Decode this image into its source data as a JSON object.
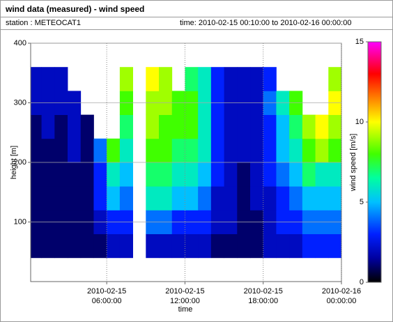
{
  "chart_data": {
    "type": "heatmap",
    "title": "wind data (measured) - wind speed",
    "station": "station : METEOCAT1",
    "period": "time: 2010-02-15 00:10:00 to 2010-02-16 00:00:00",
    "xlabel": "time",
    "ylabel": "height [m]",
    "zlabel": "wind speed [m/s]",
    "xlim": [
      "2010-02-15 00:10:00",
      "2010-02-16 00:00:00"
    ],
    "xticks": [
      "2010-02-15 06:00:00",
      "2010-02-15 12:00:00",
      "2010-02-15 18:00:00",
      "2010-02-16 00:00:00"
    ],
    "ylim": [
      0,
      400
    ],
    "yticks": [
      100,
      200,
      300,
      400
    ],
    "zlim": [
      0,
      15
    ],
    "zticks": [
      0,
      5,
      10,
      15
    ],
    "colorscale": [
      [
        0,
        "#000000"
      ],
      [
        1.5,
        "#0000a0"
      ],
      [
        3,
        "#0020ff"
      ],
      [
        5,
        "#00c0ff"
      ],
      [
        6.5,
        "#00ffa0"
      ],
      [
        8,
        "#40ff00"
      ],
      [
        10,
        "#ffff00"
      ],
      [
        11.5,
        "#ff8000"
      ],
      [
        13,
        "#ff0000"
      ],
      [
        15,
        "#ff00ff"
      ]
    ],
    "grid": true,
    "x_bins": [
      "2010-02-15 00:10:00",
      "2010-02-15 01:00:00",
      "2010-02-15 02:00:00",
      "2010-02-15 03:00:00",
      "2010-02-15 04:00:00",
      "2010-02-15 05:00:00",
      "2010-02-15 06:00:00",
      "2010-02-15 07:00:00",
      "2010-02-15 08:00:00",
      "2010-02-15 09:00:00",
      "2010-02-15 10:00:00",
      "2010-02-15 11:00:00",
      "2010-02-15 12:00:00",
      "2010-02-15 13:00:00",
      "2010-02-15 14:00:00",
      "2010-02-15 15:00:00",
      "2010-02-15 16:00:00",
      "2010-02-15 17:00:00",
      "2010-02-15 18:00:00",
      "2010-02-15 19:00:00",
      "2010-02-15 20:00:00",
      "2010-02-15 21:00:00",
      "2010-02-15 22:00:00",
      "2010-02-15 23:00:00",
      "2010-02-16 00:00:00"
    ],
    "y_bins": [
      40,
      80,
      120,
      160,
      200,
      240,
      280,
      320,
      360
    ],
    "values": [
      [
        1,
        1,
        1,
        1,
        1,
        1,
        2,
        2,
        null,
        2,
        2,
        2,
        2,
        2,
        1,
        1,
        1,
        1,
        2,
        2,
        2,
        3,
        3,
        3
      ],
      [
        1,
        1,
        1,
        1,
        1,
        2,
        3,
        3,
        null,
        4,
        4,
        3,
        3,
        3,
        2,
        2,
        1,
        1,
        2,
        3,
        3,
        4,
        4,
        4
      ],
      [
        1,
        1,
        1,
        1,
        1,
        3,
        5,
        4,
        null,
        6,
        6,
        5,
        5,
        4,
        2,
        2,
        1,
        2,
        2,
        3,
        4,
        5,
        5,
        5
      ],
      [
        1,
        1,
        1,
        1,
        1,
        3,
        6,
        5,
        null,
        7,
        7,
        6,
        6,
        5,
        3,
        2,
        1,
        2,
        3,
        4,
        5,
        7,
        6,
        6
      ],
      [
        1,
        1,
        1,
        2,
        1,
        4,
        8,
        6,
        null,
        8,
        8,
        7,
        7,
        6,
        3,
        2,
        2,
        2,
        3,
        5,
        6,
        8,
        9,
        8
      ],
      [
        1,
        2,
        1,
        2,
        1,
        null,
        null,
        7,
        null,
        9,
        8,
        8,
        8,
        6,
        3,
        2,
        2,
        2,
        3,
        5,
        7,
        9,
        10,
        9
      ],
      [
        2,
        2,
        2,
        2,
        null,
        null,
        null,
        8,
        null,
        9,
        9,
        8,
        8,
        6,
        3,
        2,
        2,
        2,
        4,
        6,
        8,
        null,
        null,
        10
      ],
      [
        2,
        2,
        2,
        null,
        null,
        null,
        null,
        9,
        null,
        10,
        9,
        null,
        7,
        6,
        3,
        2,
        2,
        2,
        3,
        null,
        null,
        null,
        null,
        9
      ]
    ]
  }
}
